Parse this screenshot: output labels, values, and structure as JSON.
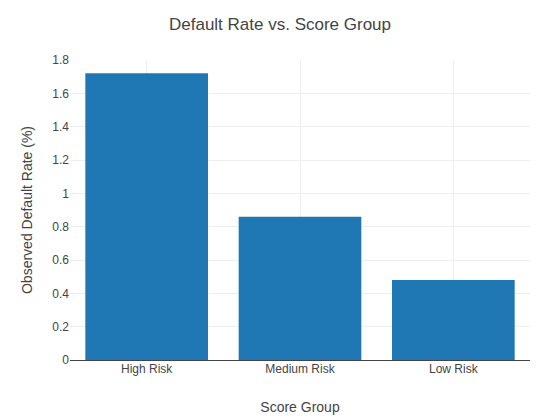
{
  "chart_data": {
    "type": "bar",
    "title": "Default Rate vs. Score Group",
    "xlabel": "Score Group",
    "ylabel": "Observed Default Rate (%)",
    "categories": [
      "High Risk",
      "Medium Risk",
      "Low Risk"
    ],
    "values": [
      1.72,
      0.86,
      0.48
    ],
    "color": "#1f77b4",
    "ylim": [
      0,
      1.8
    ],
    "yticks": [
      0,
      0.2,
      0.4,
      0.6,
      0.8,
      1,
      1.2,
      1.4,
      1.6,
      1.8
    ],
    "grid": true
  }
}
